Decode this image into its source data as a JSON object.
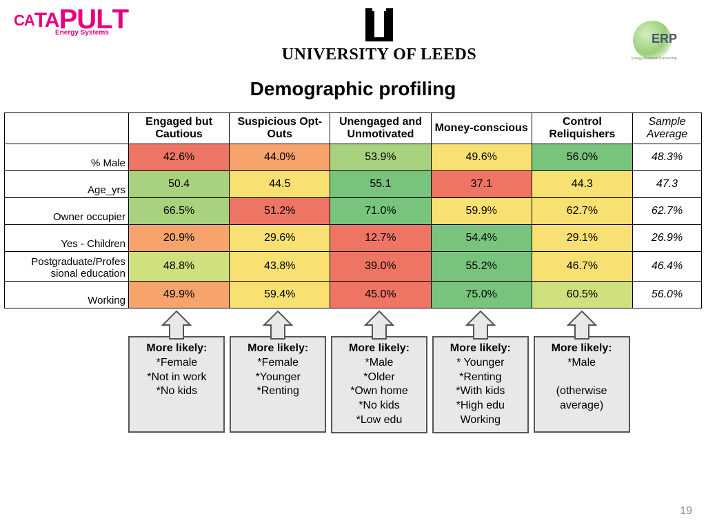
{
  "logos": {
    "catapult_word": "CATAPULT",
    "catapult_sub": "Energy Systems",
    "catapult_color": "#e6007e",
    "university_name": "UNIVERSITY OF LEEDS",
    "erp_text": "ERP",
    "erp_sub": "Energy Research Partnership"
  },
  "title": "Demographic profiling",
  "page_number": "19",
  "table": {
    "column_headers": [
      "Engaged but Cautious",
      "Suspicious Opt-Outs",
      "Unengaged and Unmotivated",
      "Money-conscious",
      "Control Reliquishers"
    ],
    "sample_col_header": "Sample Average",
    "row_labels": [
      "% Male",
      "Age_yrs",
      "Owner occupier",
      "Yes - Children",
      "Postgraduate/Profes sional education",
      "Working"
    ],
    "heat_colors": {
      "red": "#ee7564",
      "orange": "#f6a36c",
      "yellow": "#f8e072",
      "ygreen": "#cfe07e",
      "lgreen": "#a8d27e",
      "green": "#78c47c"
    },
    "cells": [
      [
        {
          "v": "42.6%",
          "c": "red"
        },
        {
          "v": "44.0%",
          "c": "orange"
        },
        {
          "v": "53.9%",
          "c": "lgreen"
        },
        {
          "v": "49.6%",
          "c": "yellow"
        },
        {
          "v": "56.0%",
          "c": "green"
        }
      ],
      [
        {
          "v": "50.4",
          "c": "lgreen"
        },
        {
          "v": "44.5",
          "c": "yellow"
        },
        {
          "v": "55.1",
          "c": "green"
        },
        {
          "v": "37.1",
          "c": "red"
        },
        {
          "v": "44.3",
          "c": "yellow"
        }
      ],
      [
        {
          "v": "66.5%",
          "c": "lgreen"
        },
        {
          "v": "51.2%",
          "c": "red"
        },
        {
          "v": "71.0%",
          "c": "green"
        },
        {
          "v": "59.9%",
          "c": "yellow"
        },
        {
          "v": "62.7%",
          "c": "yellow"
        }
      ],
      [
        {
          "v": "20.9%",
          "c": "orange"
        },
        {
          "v": "29.6%",
          "c": "yellow"
        },
        {
          "v": "12.7%",
          "c": "red"
        },
        {
          "v": "54.4%",
          "c": "green"
        },
        {
          "v": "29.1%",
          "c": "yellow"
        }
      ],
      [
        {
          "v": "48.8%",
          "c": "ygreen"
        },
        {
          "v": "43.8%",
          "c": "yellow"
        },
        {
          "v": "39.0%",
          "c": "red"
        },
        {
          "v": "55.2%",
          "c": "green"
        },
        {
          "v": "46.7%",
          "c": "yellow"
        }
      ],
      [
        {
          "v": "49.9%",
          "c": "orange"
        },
        {
          "v": "59.4%",
          "c": "yellow"
        },
        {
          "v": "45.0%",
          "c": "red"
        },
        {
          "v": "75.0%",
          "c": "green"
        },
        {
          "v": "60.5%",
          "c": "ygreen"
        }
      ]
    ],
    "sample_avg": [
      "48.3%",
      "47.3",
      "62.7%",
      "26.9%",
      "46.4%",
      "56.0%"
    ],
    "border_color": "#000000",
    "header_font_weight": "700",
    "avg_font_style": "italic"
  },
  "callouts": [
    {
      "head": "More likely:",
      "lines": [
        "*Female",
        "*Not in work",
        "*No kids"
      ]
    },
    {
      "head": "More likely:",
      "lines": [
        "*Female",
        "*Younger",
        "*Renting"
      ]
    },
    {
      "head": "More likely:",
      "lines": [
        "*Male",
        "*Older",
        "*Own home",
        "*No kids",
        "*Low edu"
      ]
    },
    {
      "head": "More likely:",
      "lines": [
        "* Younger",
        "*Renting",
        "*With kids",
        "*High edu",
        "Working"
      ]
    },
    {
      "head": "More likely:",
      "lines": [
        "*Male",
        "",
        "(otherwise average)"
      ]
    }
  ],
  "callout_style": {
    "bg": "#e8e8e8",
    "border": "#555555",
    "arrow_fill": "#e8e8e8",
    "arrow_stroke": "#555555"
  }
}
